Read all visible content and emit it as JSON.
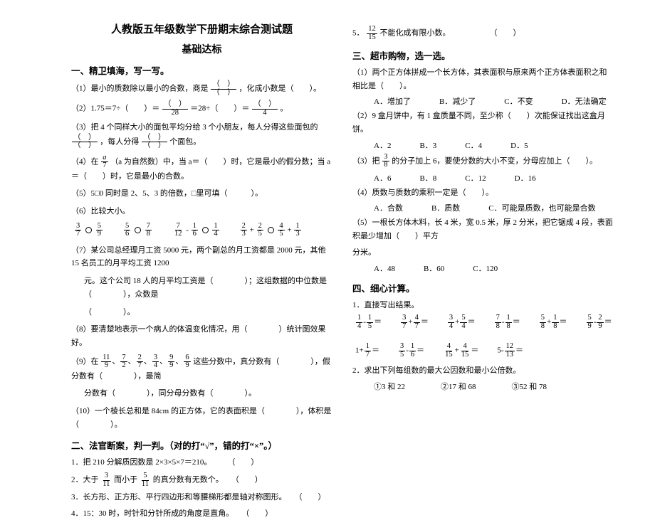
{
  "titles": {
    "main": "人教版五年级数学下册期末综合测试题",
    "sub": "基础达标"
  },
  "sec1": {
    "h": "一、精卫填海，写一写。",
    "q1": "（1）最小的质数除以最小的合数，商是",
    "q1b": "，化成小数是（　　）。",
    "q2a": "（2）1.75＝7÷（　　）＝",
    "q2b": "＝28÷（　　）＝",
    "q2c": "。",
    "q3a": "（3）把 4 个同样大小的面包平均分给 3 个小朋友，每人分得这些面包的",
    "q3b": "，每人分得",
    "q3c": "个面包。",
    "q4a": "（4）在",
    "q4b": "（a 为自然数）中，当 a＝（　　）时，它是最小的假分数；当 a＝（　　）时，它是最小的合数。",
    "q5": "（5）5□0 同时是 2、5、3 的倍数，□里可填（　　　）。",
    "q6": "（6）比较大小。",
    "q7a": "（7）某公司总经理月工资 5000 元，两个副总的月工资都是 2000 元，其他 15 名员工的月平均工资 1200",
    "q7b": "元。这个公司 18 人的月平均工资是（　　　　）；这组数据的中位数是（　　　　），众数是",
    "q7c": "（　　　　）。",
    "q8": "（8）要清楚地表示一个病人的体温变化情况，用（　　　　）统计图效果好。",
    "q9a": "（9）在",
    "q9b": "这些分数中，真分数有（　　　　），假分数有（　　　　），最简",
    "q9c": "分数有（　　　　），同分母分数有（　　　　）。",
    "q10": "（10）一个棱长总和是 84cm 的正方体，它的表面积是（　　　　），体积是（　　　　）。",
    "fracs9": [
      {
        "n": "11",
        "d": "9"
      },
      {
        "n": "7",
        "d": "2"
      },
      {
        "n": "2",
        "d": "7"
      },
      {
        "n": "3",
        "d": "4"
      },
      {
        "n": "9",
        "d": "9"
      },
      {
        "n": "6",
        "d": "9"
      }
    ],
    "cmp": [
      {
        "l": {
          "n": "3",
          "d": "7"
        },
        "r": {
          "n": "5",
          "d": "9"
        }
      },
      {
        "l": {
          "n": "5",
          "d": "6"
        },
        "r": {
          "n": "7",
          "d": "8"
        }
      },
      {
        "l": {
          "n": "7",
          "d": "12"
        },
        "op": "-",
        "m": {
          "n": "1",
          "d": "6"
        },
        "r": {
          "n": "1",
          "d": "4"
        }
      },
      {
        "l": {
          "n": "2",
          "d": "3"
        },
        "op": "+",
        "m": {
          "n": "2",
          "d": "5"
        },
        "r": {
          "n": "4",
          "d": "5"
        },
        "op2": "+",
        "r2": {
          "n": "1",
          "d": "3"
        }
      }
    ]
  },
  "sec2": {
    "h": "二、法官断案，判一判。（对的打“√”，错的打“×”。）",
    "items": [
      "1．把 210 分解质因数是 2×3×5×7＝210。　　　（　　）",
      "",
      "3．长方形、正方形、平行四边形和等腰梯形都是轴对称图形。　　（　　）",
      "4．15：30 时，时针和分针所成的角度是直角。　　（　　）"
    ],
    "q2a": "2．大于",
    "q2b": "而小于",
    "q2c": "的真分数有无数个。　　（　　）",
    "f2a": {
      "n": "3",
      "d": "11"
    },
    "f2b": {
      "n": "5",
      "d": "11"
    }
  },
  "sec2r": {
    "q5a": "5．",
    "q5b": "不能化成有限小数。　　　　　　（　　）",
    "f5": {
      "n": "12",
      "d": "15"
    }
  },
  "sec3": {
    "h": "三、超市购物，选一选。",
    "q1": "（1）两个正方体拼成一个长方体，其表面积与原来两个正方体表面积之和相比是（　　）。",
    "opts1": [
      "A．增加了",
      "B．减少了",
      "C．不变",
      "D．无法确定"
    ],
    "q2": "（2）9 盒月饼中，有 1 盒质量不同，至少称（　　）次能保证找出这盒月饼。",
    "opts2": [
      "A．2",
      "B．3",
      "C．4",
      "D．5"
    ],
    "q3a": "（3）把",
    "q3b": "的分子加上 6，要使分数的大小不变，分母应加上（　　）。",
    "f3": {
      "n": "3",
      "d": "8"
    },
    "opts3": [
      "A．6",
      "B．8",
      "C．12",
      "D．16"
    ],
    "q4": "（4）质数与质数的乘积一定是（　　）。",
    "opts4": [
      "A．合数",
      "B．质数",
      "C．可能是质数，也可能是合数"
    ],
    "q5a": "（5）一根长方体木料，长 4 米，宽 0.5 米，厚 2 分米，把它锯成 4 段，表面积最少增加（　　）平方",
    "q5b": "分米。",
    "opts5": [
      "A．48",
      "B．60",
      "C．120"
    ]
  },
  "sec4": {
    "h": "四、细心计算。",
    "sub1": "1．直接写出结果。",
    "eqs": [
      {
        "a": {
          "n": "1",
          "d": "4"
        },
        "op": "-",
        "b": {
          "n": "1",
          "d": "5"
        }
      },
      {
        "a": {
          "n": "3",
          "d": "7"
        },
        "op": "+",
        "b": {
          "n": "4",
          "d": "7"
        }
      },
      {
        "a": {
          "n": "3",
          "d": "4"
        },
        "op": "+",
        "b": {
          "n": "5",
          "d": "4"
        }
      },
      {
        "a": {
          "n": "7",
          "d": "8"
        },
        "op": "-",
        "b": {
          "n": "1",
          "d": "8"
        }
      },
      {
        "a": {
          "n": "5",
          "d": "8"
        },
        "op": "+",
        "b": {
          "n": "1",
          "d": "8"
        }
      },
      {
        "a": {
          "n": "5",
          "d": "9"
        },
        "op": "-",
        "b": {
          "n": "2",
          "d": "9"
        }
      },
      {
        "txt": "1",
        "op": "+",
        "b": {
          "n": "1",
          "d": "7"
        }
      },
      {
        "a": {
          "n": "3",
          "d": "5"
        },
        "op": "-",
        "b": {
          "n": "1",
          "d": "6"
        }
      },
      {
        "a": {
          "n": "4",
          "d": "15"
        },
        "op": "+",
        "b": {
          "n": "4",
          "d": "15"
        }
      },
      {
        "txt": "5",
        "op": "-",
        "b": {
          "n": "12",
          "d": "13"
        }
      }
    ],
    "sub2": "2．求出下列每组数的最大公因数和最小公倍数。",
    "sets": [
      "①3 和 22",
      "②17 和 68",
      "③52 和 78"
    ]
  },
  "colors": {
    "text": "#000000",
    "bg": "#ffffff"
  }
}
